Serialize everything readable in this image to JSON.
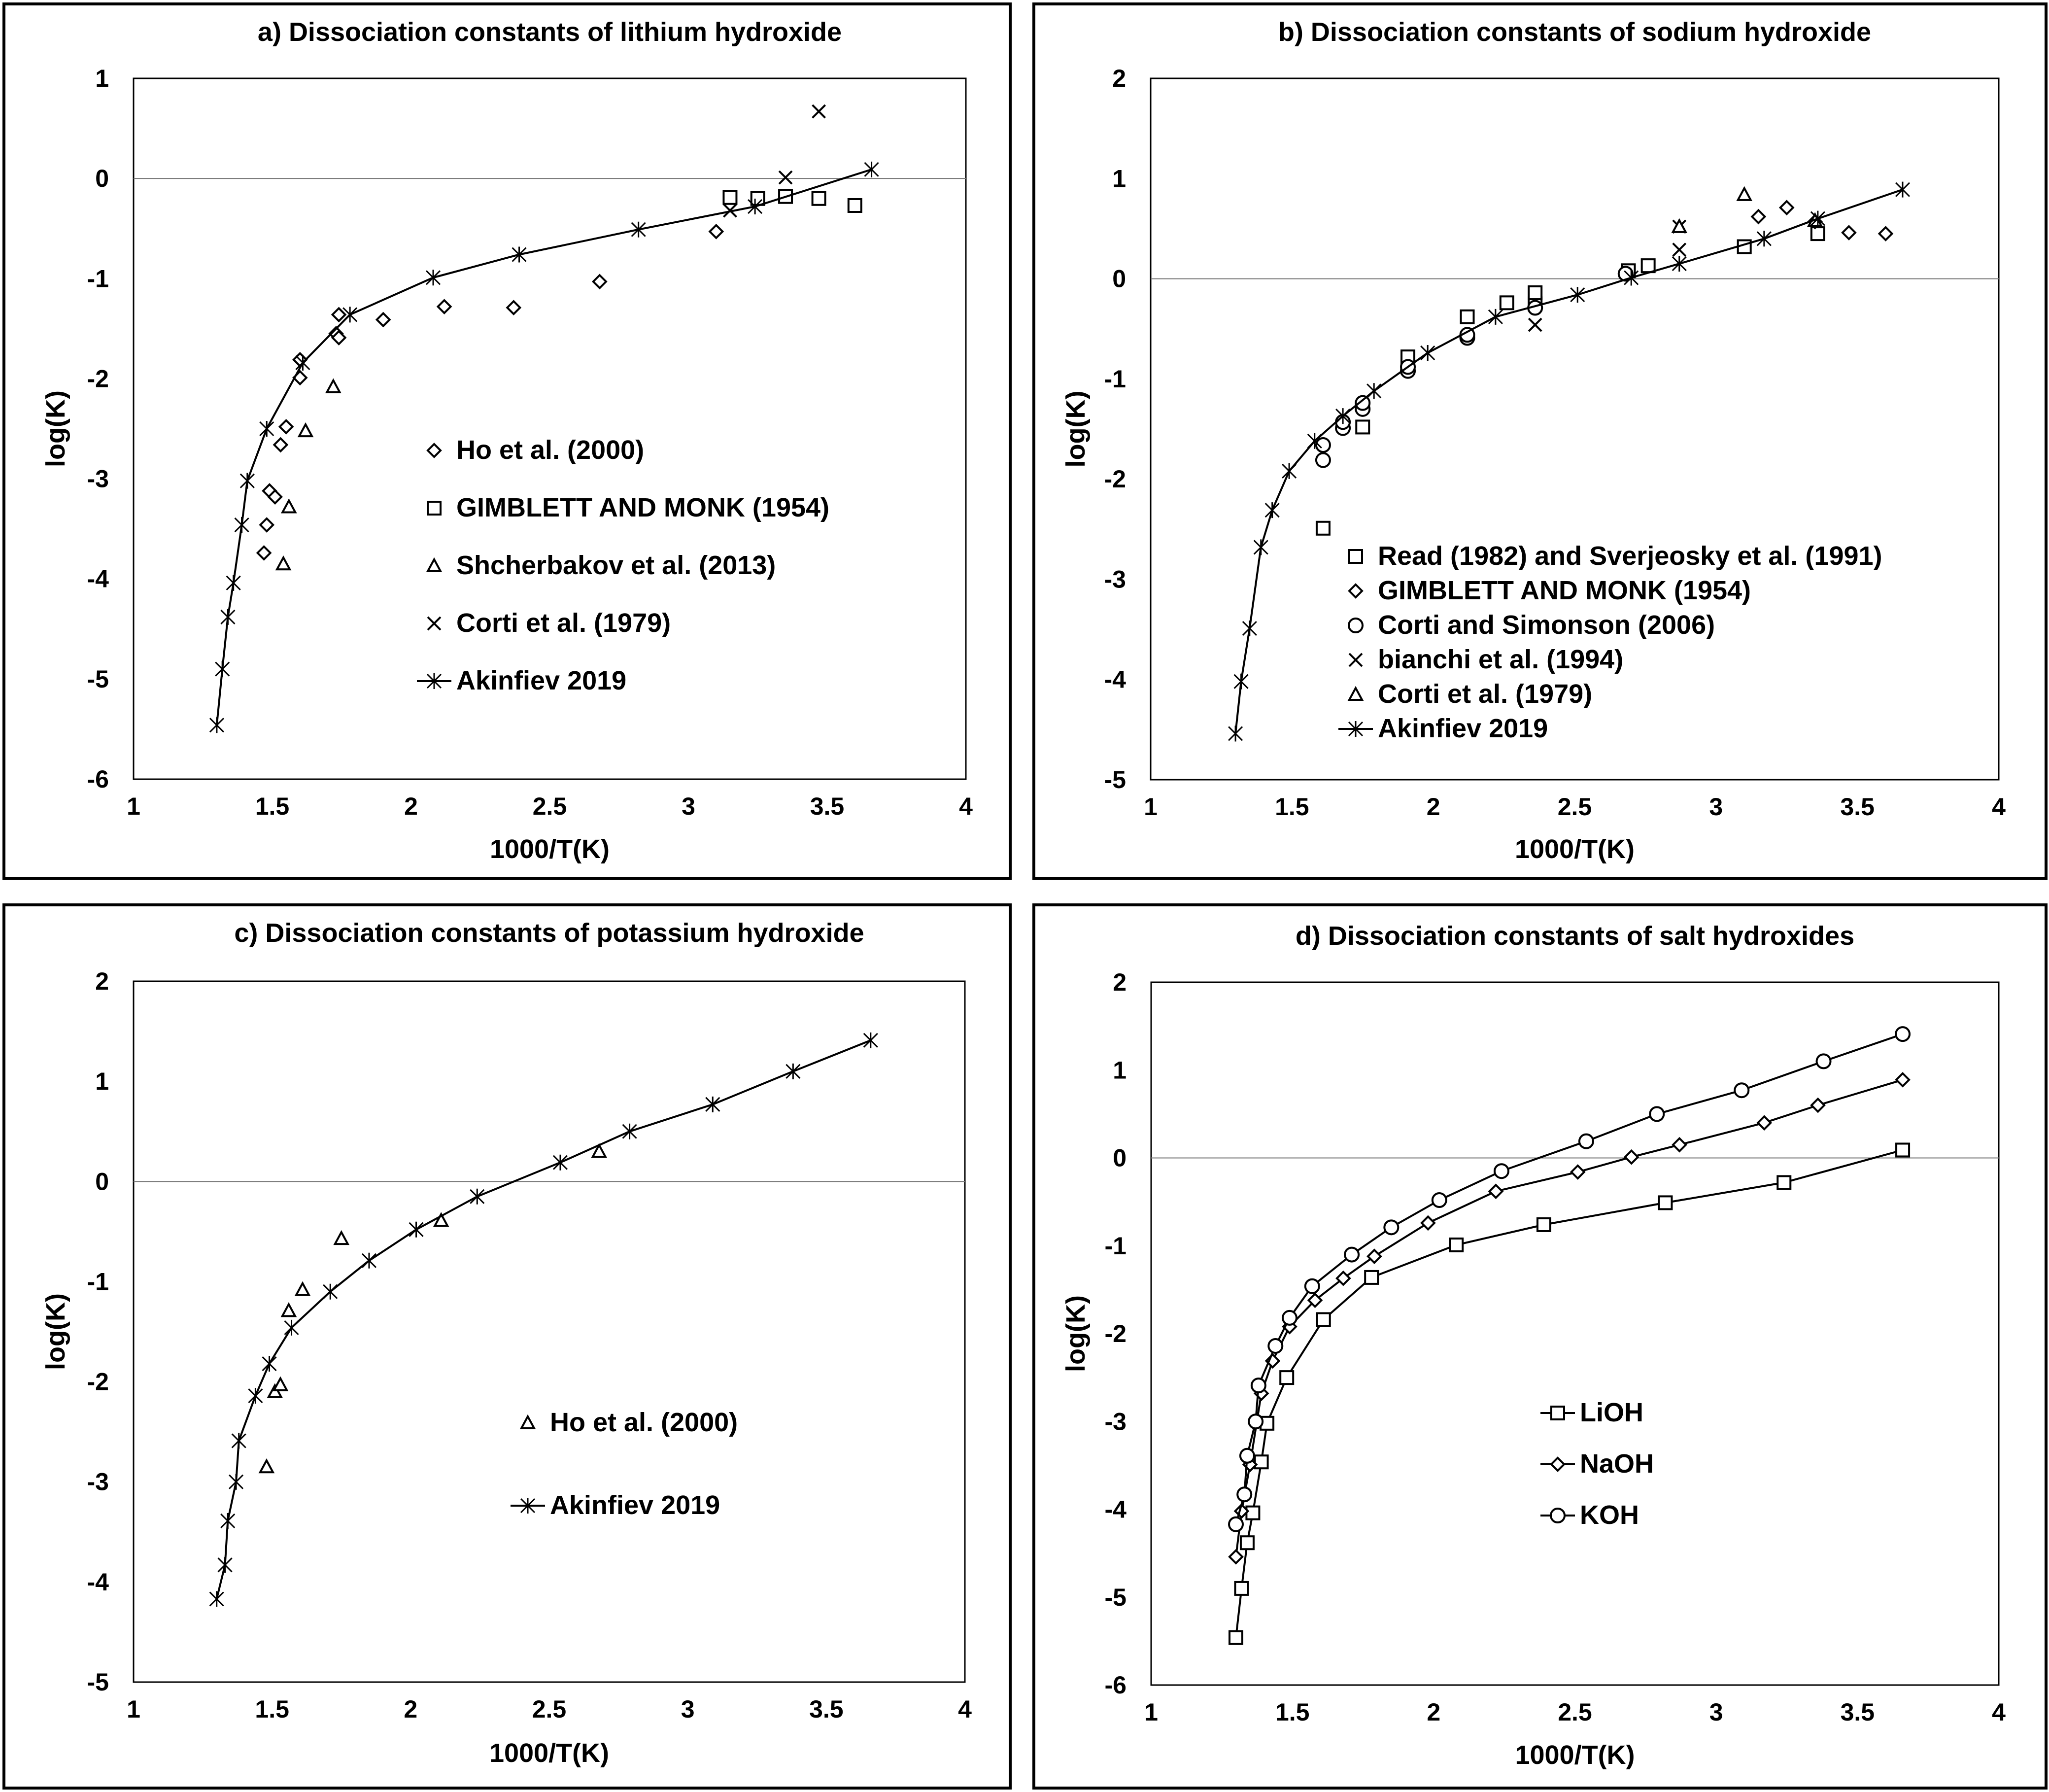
{
  "chart_data": [
    {
      "type": "scatter",
      "title": "a) Dissociation constants of lithium hydroxide",
      "xlabel": "1000/T(K)",
      "ylabel": "log(K)",
      "xlim": [
        1,
        4
      ],
      "ylim": [
        -6,
        1
      ],
      "x_ticks": [
        "1",
        "1.5",
        "2",
        "2.5",
        "3",
        "3.5",
        "4"
      ],
      "y_ticks": [
        "1",
        "0",
        "-1",
        "-2",
        "-3",
        "-4",
        "-5",
        "-6"
      ],
      "legend_position": "center",
      "series": [
        {
          "name": "Ho et al. (2000)",
          "marker": "diamond",
          "x": [
            1.47,
            1.48,
            1.49,
            1.51,
            1.53,
            1.55,
            1.6,
            1.6,
            1.73,
            1.74,
            1.74,
            1.9,
            2.12,
            2.37,
            2.68,
            3.1
          ],
          "y": [
            -3.74,
            -3.46,
            -3.12,
            -3.18,
            -2.66,
            -2.48,
            -1.99,
            -1.81,
            -1.55,
            -1.59,
            -1.36,
            -1.41,
            -1.28,
            -1.29,
            -1.03,
            -0.53
          ]
        },
        {
          "name": "GIMBLETT AND MONK (1954)",
          "marker": "square",
          "x": [
            3.15,
            3.25,
            3.35,
            3.47,
            3.6
          ],
          "y": [
            -0.19,
            -0.2,
            -0.18,
            -0.2,
            -0.27
          ]
        },
        {
          "name": "Shcherbakov et al. (2013)",
          "marker": "triangle",
          "x": [
            1.54,
            1.56,
            1.62,
            1.72
          ],
          "y": [
            -3.85,
            -3.28,
            -2.52,
            -2.08
          ]
        },
        {
          "name": "Corti et al. (1979)",
          "marker": "cross",
          "x": [
            3.15,
            3.35,
            3.47
          ],
          "y": [
            -0.32,
            0.01,
            0.67
          ]
        },
        {
          "name": "Akinfiev 2019",
          "marker": "asterisk",
          "line": true,
          "x": [
            1.3,
            1.32,
            1.34,
            1.36,
            1.39,
            1.41,
            1.48,
            1.61,
            1.78,
            2.08,
            2.39,
            2.82,
            3.24,
            3.66
          ],
          "y": [
            -5.46,
            -4.9,
            -4.38,
            -4.04,
            -3.46,
            -3.02,
            -2.5,
            -1.84,
            -1.36,
            -0.99,
            -0.76,
            -0.51,
            -0.28,
            0.09
          ]
        }
      ]
    },
    {
      "type": "scatter",
      "title": "b) Dissociation constants of sodium hydroxide",
      "xlabel": "1000/T(K)",
      "ylabel": "log(K)",
      "xlim": [
        1,
        4
      ],
      "ylim": [
        -5,
        2
      ],
      "x_ticks": [
        "1",
        "1.5",
        "2",
        "2.5",
        "3",
        "3.5",
        "4"
      ],
      "y_ticks": [
        "2",
        "1",
        "0",
        "-1",
        "-2",
        "-3",
        "-4",
        "-5"
      ],
      "legend_position": "bottom-center",
      "series": [
        {
          "name": "Read (1982) and Sverjeosky et al. (1991)",
          "marker": "square",
          "x": [
            1.61,
            1.75,
            1.91,
            1.91,
            2.12,
            2.26,
            2.36,
            2.36,
            2.69,
            2.76,
            3.1,
            3.36
          ],
          "y": [
            -2.49,
            -1.48,
            -0.88,
            -0.78,
            -0.38,
            -0.24,
            -0.25,
            -0.14,
            0.08,
            0.13,
            0.32,
            0.45
          ]
        },
        {
          "name": "GIMBLETT AND MONK (1954)",
          "marker": "diamond",
          "x": [
            3.15,
            3.25,
            3.35,
            3.47,
            3.6
          ],
          "y": [
            0.62,
            0.71,
            0.57,
            0.46,
            0.45
          ]
        },
        {
          "name": "Corti and Simonson (2006)",
          "marker": "circle",
          "x": [
            1.61,
            1.61,
            1.68,
            1.68,
            1.75,
            1.75,
            1.91,
            1.91,
            2.12,
            2.12,
            2.36,
            2.68
          ],
          "y": [
            -1.81,
            -1.66,
            -1.49,
            -1.43,
            -1.3,
            -1.24,
            -0.92,
            -0.88,
            -0.59,
            -0.56,
            -0.29,
            0.05
          ]
        },
        {
          "name": "bianchi et al. (1994)",
          "marker": "cross",
          "x": [
            2.36,
            2.87,
            2.87
          ],
          "y": [
            -0.46,
            0.29,
            0.52
          ]
        },
        {
          "name": "Corti et al. (1979)",
          "marker": "triangle",
          "x": [
            2.87,
            3.1,
            3.35
          ],
          "y": [
            0.52,
            0.84,
            0.58
          ]
        },
        {
          "name": "Akinfiev 2019",
          "marker": "asterisk",
          "line": true,
          "x": [
            1.3,
            1.32,
            1.35,
            1.39,
            1.43,
            1.49,
            1.58,
            1.68,
            1.79,
            1.98,
            2.22,
            2.51,
            2.7,
            2.87,
            3.17,
            3.36,
            3.66
          ],
          "y": [
            -4.54,
            -4.02,
            -3.49,
            -2.68,
            -2.31,
            -1.92,
            -1.62,
            -1.37,
            -1.12,
            -0.74,
            -0.38,
            -0.16,
            0.01,
            0.15,
            0.4,
            0.6,
            0.89
          ]
        }
      ]
    },
    {
      "type": "scatter",
      "title": "c) Dissociation constants of potassium hydroxide",
      "xlabel": "1000/T(K)",
      "ylabel": "log(K)",
      "xlim": [
        1,
        4
      ],
      "ylim": [
        -5,
        2
      ],
      "x_ticks": [
        "1",
        "1.5",
        "2",
        "2.5",
        "3",
        "3.5",
        "4"
      ],
      "y_ticks": [
        "2",
        "1",
        "0",
        "-1",
        "-2",
        "-3",
        "-4",
        "-5"
      ],
      "legend_position": "bottom-right",
      "series": [
        {
          "name": "Ho et al. (2000)",
          "marker": "triangle",
          "x": [
            1.48,
            1.51,
            1.53,
            1.56,
            1.61,
            1.75,
            2.11,
            2.68
          ],
          "y": [
            -2.85,
            -2.1,
            -2.03,
            -1.29,
            -1.08,
            -0.57,
            -0.39,
            0.3
          ]
        },
        {
          "name": "Akinfiev 2019",
          "marker": "asterisk",
          "line": true,
          "x": [
            1.3,
            1.33,
            1.34,
            1.37,
            1.38,
            1.44,
            1.49,
            1.57,
            1.71,
            1.85,
            2.02,
            2.24,
            2.54,
            2.79,
            3.09,
            3.38,
            3.66
          ],
          "y": [
            -4.17,
            -3.83,
            -3.39,
            -3.0,
            -2.59,
            -2.14,
            -1.82,
            -1.46,
            -1.1,
            -0.79,
            -0.48,
            -0.15,
            0.19,
            0.5,
            0.77,
            1.1,
            1.41
          ]
        }
      ]
    },
    {
      "type": "line",
      "title": "d) Dissociation constants of salt hydroxides",
      "xlabel": "1000/T(K)",
      "ylabel": "log(K)",
      "xlim": [
        1,
        4
      ],
      "ylim": [
        -6,
        2
      ],
      "x_ticks": [
        "1",
        "1.5",
        "2",
        "2.5",
        "3",
        "3.5",
        "4"
      ],
      "y_ticks": [
        "2",
        "1",
        "0",
        "-1",
        "-2",
        "-3",
        "-4",
        "-5",
        "-6"
      ],
      "legend_position": "bottom-center",
      "series": [
        {
          "name": "LiOH",
          "marker": "square",
          "line": true,
          "x": [
            1.3,
            1.32,
            1.34,
            1.36,
            1.39,
            1.41,
            1.48,
            1.61,
            1.78,
            2.08,
            2.39,
            2.82,
            3.24,
            3.66
          ],
          "y": [
            -5.46,
            -4.9,
            -4.38,
            -4.04,
            -3.46,
            -3.02,
            -2.5,
            -1.84,
            -1.36,
            -0.99,
            -0.76,
            -0.51,
            -0.28,
            0.09
          ]
        },
        {
          "name": "NaOH",
          "marker": "diamond",
          "line": true,
          "x": [
            1.3,
            1.32,
            1.35,
            1.39,
            1.43,
            1.49,
            1.58,
            1.68,
            1.79,
            1.98,
            2.22,
            2.51,
            2.7,
            2.87,
            3.17,
            3.36,
            3.66
          ],
          "y": [
            -4.54,
            -4.02,
            -3.49,
            -2.68,
            -2.31,
            -1.92,
            -1.62,
            -1.37,
            -1.12,
            -0.74,
            -0.38,
            -0.16,
            0.01,
            0.15,
            0.4,
            0.6,
            0.89
          ]
        },
        {
          "name": "KOH",
          "marker": "circle",
          "line": true,
          "x": [
            1.3,
            1.33,
            1.34,
            1.37,
            1.38,
            1.44,
            1.49,
            1.57,
            1.71,
            1.85,
            2.02,
            2.24,
            2.54,
            2.79,
            3.09,
            3.38,
            3.66
          ],
          "y": [
            -4.17,
            -3.83,
            -3.39,
            -3.0,
            -2.59,
            -2.14,
            -1.82,
            -1.46,
            -1.1,
            -0.79,
            -0.48,
            -0.15,
            0.19,
            0.5,
            0.77,
            1.1,
            1.41
          ]
        }
      ]
    }
  ]
}
